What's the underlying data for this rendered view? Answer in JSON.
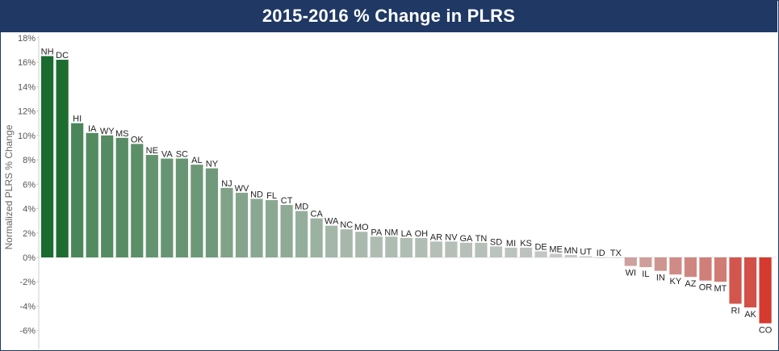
{
  "chart_data": {
    "type": "bar",
    "title": "2015-2016 % Change in PLRS",
    "xlabel": "",
    "ylabel": "Normalized PLRS % Change",
    "ylim": [
      -7,
      18
    ],
    "y_ticks": [
      "18%",
      "16%",
      "14%",
      "12%",
      "10%",
      "8%",
      "6%",
      "4%",
      "2%",
      "0%",
      "-2%",
      "-4%",
      "-6%"
    ],
    "y_tick_values": [
      18,
      16,
      14,
      12,
      10,
      8,
      6,
      4,
      2,
      0,
      -2,
      -4,
      -6
    ],
    "grid": false,
    "categories": [
      "NH",
      "DC",
      "HI",
      "IA",
      "WY",
      "MS",
      "OK",
      "NE",
      "VA",
      "SC",
      "AL",
      "NY",
      "NJ",
      "WV",
      "ND",
      "FL",
      "CT",
      "MD",
      "CA",
      "WA",
      "NC",
      "MO",
      "PA",
      "NM",
      "LA",
      "OH",
      "AR",
      "NV",
      "GA",
      "TN",
      "SD",
      "MI",
      "KS",
      "DE",
      "ME",
      "MN",
      "UT",
      "ID",
      "TX",
      "WI",
      "IL",
      "IN",
      "KY",
      "AZ",
      "OR",
      "MT",
      "RI",
      "AK",
      "CO"
    ],
    "values": [
      16.5,
      16.2,
      11.0,
      10.2,
      10.0,
      9.8,
      9.3,
      8.4,
      8.1,
      8.1,
      7.6,
      7.3,
      5.7,
      5.3,
      4.8,
      4.7,
      4.3,
      3.8,
      3.2,
      2.6,
      2.3,
      2.1,
      1.7,
      1.7,
      1.6,
      1.6,
      1.3,
      1.3,
      1.2,
      1.2,
      0.9,
      0.8,
      0.8,
      0.5,
      0.3,
      0.2,
      0.1,
      0.0,
      0.0,
      -0.7,
      -0.8,
      -1.1,
      -1.4,
      -1.6,
      -1.9,
      -2.0,
      -3.8,
      -4.1,
      -5.4
    ],
    "colors": {
      "strong_positive": "#1a6b2e",
      "neutral": "#cccccc",
      "strong_negative": "#d43a2f",
      "title_background": "#1f3864",
      "title_text": "#ffffff"
    }
  }
}
